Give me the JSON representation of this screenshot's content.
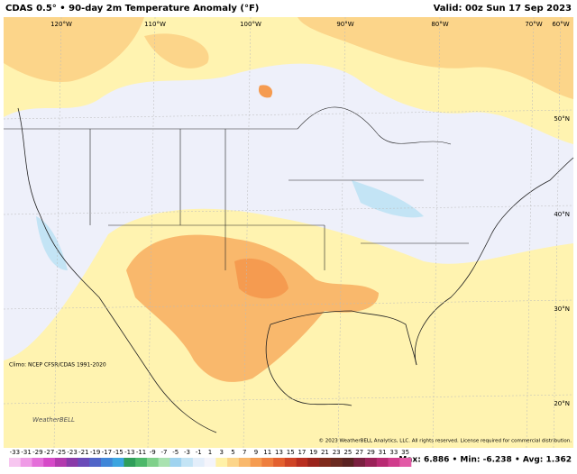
{
  "header": {
    "title": "CDAS 0.5° • 90-day 2m Temperature Anomaly (°F)",
    "valid": "Valid: 00z Sun 17 Sep 2023"
  },
  "map": {
    "longitudes": [
      "120°W",
      "110°W",
      "100°W",
      "90°W",
      "80°W",
      "70°W",
      "60°W"
    ],
    "latitudes": [
      "50°N",
      "40°N",
      "30°N",
      "20°N"
    ],
    "logo": "WeatherBELL",
    "climo": "Climo: NCEP CFSR/CDAS 1991-2020",
    "copyright": "© 2023 WeatherBELL Analytics, LLC. All rights reserved. License required for commercial distribution."
  },
  "legend": {
    "ticks": [
      -33,
      -31,
      -29,
      -27,
      -25,
      -23,
      -21,
      -19,
      -17,
      -15,
      -13,
      -11,
      -9,
      -7,
      -5,
      -3,
      -1,
      1,
      3,
      5,
      7,
      9,
      11,
      13,
      15,
      17,
      19,
      21,
      23,
      25,
      27,
      29,
      31,
      33,
      35
    ],
    "colors": [
      "#f7c6f0",
      "#ef9be6",
      "#e46fd9",
      "#d64ac8",
      "#b33aae",
      "#8a3aa8",
      "#6a4bb8",
      "#5065c8",
      "#3f86d8",
      "#3ba5e0",
      "#2f9e5a",
      "#4cb86a",
      "#7fd08a",
      "#a9e2b0",
      "#9fd3ef",
      "#c3e4f5",
      "#e3eefa",
      "#f4f4fb",
      "#fff1a8",
      "#fcd58a",
      "#f9b86c",
      "#f59b50",
      "#ee7e3e",
      "#e3602f",
      "#cf4426",
      "#b82e20",
      "#9a241c",
      "#7f2a1c",
      "#6a2a20",
      "#5a2222",
      "#7a2040",
      "#9a2258",
      "#b82a72",
      "#d03c8c",
      "#e25aa6"
    ]
  },
  "stats": "Max: 6.886 • Min: -6.238 • Avg: 1.362"
}
